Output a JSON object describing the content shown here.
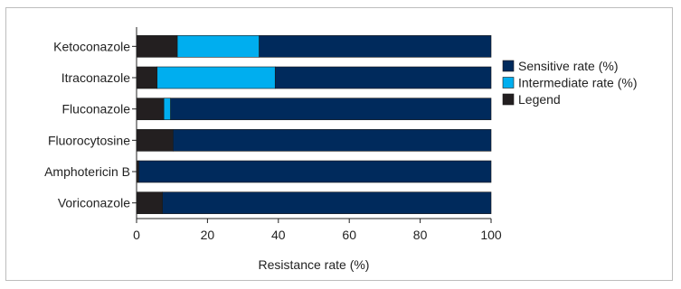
{
  "chart_data": {
    "type": "bar",
    "orientation": "horizontal",
    "stacked": true,
    "title": "",
    "xlabel": "Resistance rate (%)",
    "ylabel": "",
    "xlim": [
      0,
      100
    ],
    "x_ticks": [
      0,
      20,
      40,
      60,
      80,
      100
    ],
    "grid": false,
    "legend_position": "right",
    "categories": [
      "Ketoconazole",
      "Itraconazole",
      "Fluconazole",
      "Fluorocytosine",
      "Amphotericin B",
      "Voriconazole"
    ],
    "series": [
      {
        "name": "Legend",
        "color": "#231f20",
        "values": [
          11.5,
          5.8,
          7.7,
          10.3,
          0.6,
          7.3
        ]
      },
      {
        "name": "Intermediate rate (%)",
        "color": "#00aeef",
        "values": [
          23.1,
          33.3,
          1.9,
          0,
          0,
          0
        ]
      },
      {
        "name": "Sensitive rate (%)",
        "color": "#002a5c",
        "values": [
          65.4,
          60.9,
          90.4,
          89.7,
          99.4,
          92.7
        ]
      }
    ],
    "legend_order": [
      "Sensitive rate (%)",
      "Intermediate rate (%)",
      "Legend"
    ]
  }
}
